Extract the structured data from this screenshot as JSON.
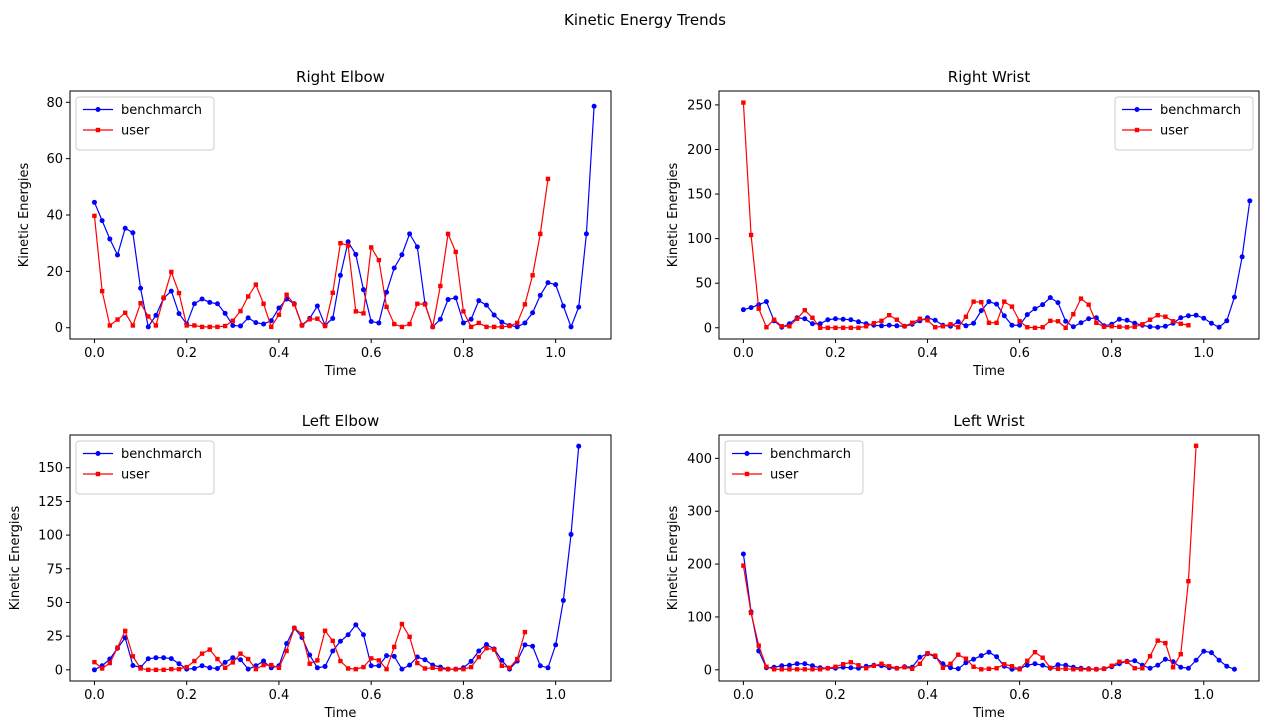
{
  "figure": {
    "suptitle": "Kinetic Energy Trends",
    "series_colors": {
      "benchmarch": "#0000ff",
      "user": "#ff0000"
    },
    "marker_shapes": {
      "benchmarch": "circle",
      "user": "square"
    }
  },
  "chart_data": [
    {
      "type": "line",
      "title": "Right Elbow",
      "xlabel": "Time",
      "ylabel": "Kinetic Energies",
      "xlim": [
        -0.053,
        1.12
      ],
      "ylim": [
        -4,
        84
      ],
      "xticks": [
        0.0,
        0.2,
        0.4,
        0.6,
        0.8,
        1.0
      ],
      "xtick_labels": [
        "0.0",
        "0.2",
        "0.4",
        "0.6",
        "0.8",
        "1.0"
      ],
      "yticks": [
        0,
        20,
        40,
        60,
        80
      ],
      "ytick_labels": [
        "0",
        "20",
        "40",
        "60",
        "80"
      ],
      "legend": "top-left",
      "x_step": 0.016667,
      "series": [
        {
          "name": "benchmarch",
          "color": "#0000ff",
          "marker": "circle",
          "values": [
            44.5,
            38,
            31.5,
            25.8,
            35.3,
            33.7,
            14,
            0.3,
            4.4,
            10.5,
            13,
            5,
            1.3,
            8.5,
            10.2,
            9,
            8.5,
            5.1,
            0.8,
            0.6,
            3.5,
            1.8,
            1.3,
            2.5,
            7,
            10.2,
            8.5,
            0.9,
            3.3,
            7.7,
            0.9,
            3.3,
            18.6,
            30.5,
            26,
            13.5,
            2.2,
            1.7,
            12.6,
            21.2,
            25.9,
            33.3,
            28.7,
            8.5,
            0.3,
            3,
            10,
            10.6,
            1.7,
            3,
            9.6,
            8,
            4.5,
            2,
            0.8,
            0.3,
            1.7,
            5.3,
            11.5,
            16,
            15.3,
            7.7,
            0.3,
            7.3,
            33.3,
            78.6
          ]
        },
        {
          "name": "user",
          "color": "#ff0000",
          "marker": "square",
          "values": [
            39.7,
            13,
            0.8,
            2.9,
            5.3,
            0.8,
            8.7,
            4,
            0.8,
            10.7,
            19.8,
            12.3,
            0.8,
            0.8,
            0.3,
            0.3,
            0.3,
            0.6,
            2.5,
            5.9,
            11.1,
            15.3,
            8.5,
            0.3,
            4.6,
            11.7,
            8.3,
            0.8,
            3,
            3.2,
            0.6,
            12.4,
            30,
            29.2,
            5.8,
            5.1,
            28.5,
            24,
            7.4,
            1.3,
            0.3,
            1.3,
            8.5,
            8.3,
            0.3,
            14.8,
            33.3,
            26.9,
            5.8,
            0.3,
            1.7,
            0.3,
            0.3,
            0.3,
            0.6,
            1.7,
            8.3,
            18.6,
            33.3,
            52.8
          ]
        }
      ]
    },
    {
      "type": "line",
      "title": "Right Wrist",
      "xlabel": "Time",
      "ylabel": "Kinetic Energies",
      "xlim": [
        -0.053,
        1.12
      ],
      "ylim": [
        -12.6,
        265.6
      ],
      "xticks": [
        0.0,
        0.2,
        0.4,
        0.6,
        0.8,
        1.0
      ],
      "xtick_labels": [
        "0.0",
        "0.2",
        "0.4",
        "0.6",
        "0.8",
        "1.0"
      ],
      "yticks": [
        0,
        50,
        100,
        150,
        200,
        250
      ],
      "ytick_labels": [
        "0",
        "50",
        "100",
        "150",
        "200",
        "250"
      ],
      "legend": "top-right",
      "x_step": 0.016667,
      "series": [
        {
          "name": "benchmarch",
          "color": "#0000ff",
          "marker": "circle",
          "values": [
            20.3,
            22.6,
            25.9,
            29.3,
            7.8,
            0.6,
            4.5,
            11.2,
            10.1,
            4.5,
            4.5,
            9,
            10.1,
            9.6,
            9,
            6.7,
            4.5,
            2.8,
            2.2,
            2.8,
            2.2,
            1.7,
            3.9,
            7.8,
            11.2,
            8.4,
            2.8,
            1.7,
            6.7,
            2.2,
            5.1,
            19.2,
            29.3,
            26.5,
            13.5,
            2.8,
            2.8,
            14.7,
            21.4,
            25.9,
            33.8,
            28.2,
            7.3,
            1.1,
            5.6,
            10.1,
            11.2,
            2.2,
            3.9,
            9.6,
            8.4,
            5.1,
            2.8,
            1.1,
            0.6,
            1.7,
            5.1,
            11.2,
            13.5,
            14.1,
            10.7,
            5.1,
            0.6,
            7.8,
            34.4,
            79.6,
            142.4
          ]
        },
        {
          "name": "user",
          "color": "#ff0000",
          "marker": "square",
          "values": [
            252.6,
            104.1,
            21.4,
            0.6,
            9,
            1.7,
            1.7,
            10.1,
            19.7,
            11.2,
            0,
            0,
            0,
            0,
            0,
            0,
            1.7,
            5.1,
            7.8,
            14.1,
            9,
            1.7,
            5.6,
            10.1,
            8.4,
            0.6,
            1.7,
            3.9,
            0.6,
            12.4,
            29.3,
            28.7,
            5.6,
            5.6,
            29.3,
            23.7,
            7.3,
            0.6,
            0,
            0.6,
            7.8,
            7.3,
            0,
            15.2,
            32.7,
            25.9,
            5.6,
            1.1,
            1.7,
            1.1,
            0.6,
            1.1,
            3.9,
            9,
            14.1,
            12.4,
            7.3,
            4.5,
            2.8
          ]
        }
      ]
    },
    {
      "type": "line",
      "title": "Left Elbow",
      "xlabel": "Time",
      "ylabel": "Kinetic Energies",
      "xlim": [
        -0.053,
        1.12
      ],
      "ylim": [
        -8.3,
        174.3
      ],
      "xticks": [
        0.0,
        0.2,
        0.4,
        0.6,
        0.8,
        1.0
      ],
      "xtick_labels": [
        "0.0",
        "0.2",
        "0.4",
        "0.6",
        "0.8",
        "1.0"
      ],
      "yticks": [
        0,
        25,
        50,
        75,
        100,
        125,
        150
      ],
      "ytick_labels": [
        "0",
        "25",
        "50",
        "75",
        "100",
        "125",
        "150"
      ],
      "legend": "top-left",
      "x_step": 0.016667,
      "series": [
        {
          "name": "benchmarch",
          "color": "#0000ff",
          "marker": "circle",
          "values": [
            0,
            3,
            8,
            16,
            23.8,
            3.2,
            1.8,
            8.2,
            9,
            9,
            8.3,
            4.5,
            0.5,
            1,
            3,
            1.5,
            1,
            5.5,
            9,
            7.5,
            0.5,
            3,
            6.5,
            1.5,
            3,
            19.5,
            31,
            24,
            11,
            1.5,
            2.5,
            14,
            21.2,
            26,
            33.4,
            26,
            3,
            3,
            10.5,
            10,
            0.5,
            3.5,
            9.5,
            7.5,
            3.5,
            2,
            0.5,
            0.5,
            1.5,
            6.3,
            14,
            18.8,
            15.5,
            7,
            0.5,
            6.5,
            18.5,
            17.5,
            3,
            1.5,
            18.5,
            51.5,
            100.5,
            166
          ]
        },
        {
          "name": "user",
          "color": "#ff0000",
          "marker": "square",
          "values": [
            5.7,
            1,
            5,
            16.5,
            28.9,
            10,
            1,
            0,
            0,
            0,
            0.5,
            0.5,
            2,
            6.5,
            12,
            15,
            8,
            1.5,
            5.5,
            12,
            8,
            0.5,
            3.5,
            3.5,
            1.5,
            14,
            31,
            26.5,
            4.5,
            7,
            29,
            21.5,
            6.5,
            1,
            0.5,
            2,
            8.5,
            7,
            0.5,
            17,
            34,
            24.5,
            5,
            1,
            1.5,
            0.5,
            0.5,
            0.5,
            0.5,
            2,
            9.5,
            16,
            15,
            3,
            1.5,
            8,
            28
          ]
        }
      ]
    },
    {
      "type": "line",
      "title": "Left Wrist",
      "xlabel": "Time",
      "ylabel": "Kinetic Energies",
      "xlim": [
        -0.053,
        1.12
      ],
      "ylim": [
        -21.2,
        444.2
      ],
      "xticks": [
        0.0,
        0.2,
        0.4,
        0.6,
        0.8,
        1.0
      ],
      "xtick_labels": [
        "0.0",
        "0.2",
        "0.4",
        "0.6",
        "0.8",
        "1.0"
      ],
      "yticks": [
        0,
        100,
        200,
        300,
        400
      ],
      "ytick_labels": [
        "0",
        "100",
        "200",
        "300",
        "400"
      ],
      "legend": "top-left",
      "x_step": 0.016667,
      "series": [
        {
          "name": "benchmarch",
          "color": "#0000ff",
          "marker": "circle",
          "values": [
            219.1,
            109.6,
            35.7,
            3.8,
            4.8,
            7.6,
            8.6,
            11.4,
            11.4,
            7.6,
            3.8,
            2.9,
            2.9,
            4.8,
            3.8,
            2.9,
            6.7,
            8.6,
            7.6,
            3.8,
            2.9,
            5.7,
            4.8,
            23.8,
            30.5,
            24.8,
            11.4,
            3.8,
            1.9,
            13.3,
            20,
            26.7,
            33.3,
            24.8,
            6.7,
            1,
            1.9,
            8.6,
            11.4,
            8.6,
            2.9,
            9.5,
            8.6,
            4.8,
            2.9,
            1.9,
            1,
            1.9,
            5.7,
            11.4,
            16.2,
            17.1,
            8.6,
            2.9,
            8.6,
            20,
            15.2,
            4.8,
            2.9,
            18.1,
            35.2,
            32.4,
            18.1,
            6.7,
            1
          ]
        },
        {
          "name": "user",
          "color": "#ff0000",
          "marker": "square",
          "values": [
            197.1,
            107.6,
            45.7,
            5.7,
            1,
            1,
            1,
            1,
            1,
            1,
            1,
            2.9,
            5.7,
            10.5,
            14.3,
            8.6,
            2.9,
            7.6,
            11.4,
            6.7,
            2.9,
            4.8,
            1.9,
            11.4,
            31.4,
            26.7,
            3.8,
            11.4,
            28.6,
            21,
            5.7,
            1,
            1.9,
            2.9,
            10.5,
            6.7,
            1,
            17.1,
            33.3,
            22.9,
            3.8,
            1.9,
            1.9,
            1,
            1,
            1,
            1,
            1.9,
            7.6,
            15.2,
            15.2,
            2.9,
            2.9,
            25.7,
            55.2,
            50.5,
            4.8,
            29.5,
            167.6,
            423.8
          ]
        }
      ]
    }
  ]
}
